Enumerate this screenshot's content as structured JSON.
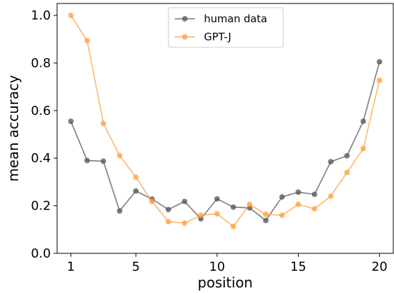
{
  "chart_data": {
    "type": "line",
    "xlabel": "position",
    "ylabel": "mean accuracy",
    "xlim": [
      0.15,
      20.85
    ],
    "ylim": [
      0.0,
      1.05
    ],
    "x_ticks": [
      1,
      5,
      10,
      15,
      20
    ],
    "x_tick_labels": [
      "1",
      "5",
      "10",
      "15",
      "20"
    ],
    "y_ticks": [
      0.0,
      0.2,
      0.4,
      0.6,
      0.8,
      1.0
    ],
    "y_tick_labels": [
      "0.0",
      "0.2",
      "0.4",
      "0.6",
      "0.8",
      "1.0"
    ],
    "grid": false,
    "legend_position": "top-center",
    "x": [
      1,
      2,
      3,
      4,
      5,
      6,
      7,
      8,
      9,
      10,
      11,
      12,
      13,
      14,
      15,
      16,
      17,
      18,
      19,
      20
    ],
    "series": [
      {
        "name": "human data",
        "color": "#555555",
        "values": [
          0.555,
          0.39,
          0.387,
          0.178,
          0.262,
          0.228,
          0.184,
          0.218,
          0.145,
          0.229,
          0.194,
          0.191,
          0.138,
          0.237,
          0.257,
          0.248,
          0.385,
          0.41,
          0.555,
          0.805
        ]
      },
      {
        "name": "GPT-J",
        "color": "#ffa040",
        "values": [
          1.0,
          0.894,
          0.546,
          0.411,
          0.32,
          0.218,
          0.133,
          0.127,
          0.16,
          0.166,
          0.113,
          0.206,
          0.164,
          0.16,
          0.206,
          0.187,
          0.24,
          0.34,
          0.44,
          0.727
        ]
      }
    ]
  }
}
